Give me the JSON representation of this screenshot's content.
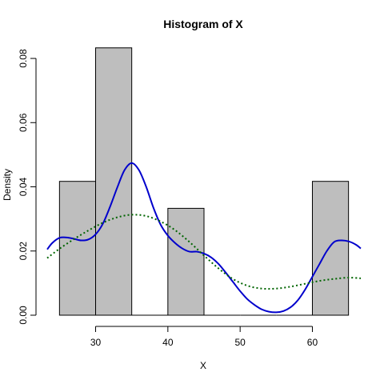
{
  "chart_data": {
    "type": "bar",
    "title": "Histogram of X",
    "xlabel": "X",
    "ylabel": "Density",
    "xlim": [
      23.3,
      66.7
    ],
    "ylim": [
      0,
      0.0835
    ],
    "grid": false,
    "bar_color": "#bebebe",
    "x_ticks": [
      30,
      40,
      50,
      60
    ],
    "y_ticks": [
      0.0,
      0.02,
      0.04,
      0.06,
      0.08
    ],
    "y_tick_labels": [
      "0.00",
      "0.02",
      "0.04",
      "0.06",
      "0.08"
    ],
    "bins": [
      {
        "x0": 25,
        "x1": 30,
        "density": 0.0417
      },
      {
        "x0": 30,
        "x1": 35,
        "density": 0.0833
      },
      {
        "x0": 35,
        "x1": 40,
        "density": 0.0
      },
      {
        "x0": 40,
        "x1": 45,
        "density": 0.0333
      },
      {
        "x0": 45,
        "x1": 50,
        "density": 0.0
      },
      {
        "x0": 50,
        "x1": 55,
        "density": 0.0
      },
      {
        "x0": 55,
        "x1": 60,
        "density": 0.0
      },
      {
        "x0": 60,
        "x1": 65,
        "density": 0.0417
      }
    ],
    "series": [
      {
        "color": "#0000cc",
        "style": "solid",
        "type": "line",
        "x": [
          23.3,
          24,
          25,
          26,
          27,
          28,
          29,
          30,
          31,
          32,
          33,
          34,
          35,
          36,
          37,
          38,
          39,
          40,
          41,
          42,
          43,
          44,
          45,
          46,
          47,
          48,
          49,
          50,
          51,
          52,
          53,
          54,
          55,
          56,
          57,
          58,
          59,
          60,
          61,
          62,
          63,
          64,
          65,
          66,
          66.7
        ],
        "y": [
          0.0205,
          0.0225,
          0.0241,
          0.0242,
          0.0238,
          0.0233,
          0.0236,
          0.0252,
          0.0285,
          0.0338,
          0.0398,
          0.0452,
          0.0474,
          0.0452,
          0.04,
          0.0335,
          0.0282,
          0.0248,
          0.0225,
          0.0208,
          0.0198,
          0.0198,
          0.0192,
          0.018,
          0.016,
          0.0133,
          0.0104,
          0.0075,
          0.005,
          0.0032,
          0.0018,
          0.0011,
          0.0009,
          0.0013,
          0.0025,
          0.0047,
          0.008,
          0.012,
          0.016,
          0.02,
          0.0228,
          0.0233,
          0.023,
          0.022,
          0.0208
        ]
      },
      {
        "color": "#006400",
        "style": "dotted",
        "type": "line",
        "x": [
          23.3,
          25,
          27,
          29,
          31,
          33,
          35,
          37,
          39,
          41,
          43,
          45,
          47,
          49,
          51,
          53,
          55,
          57,
          59,
          61,
          63,
          65,
          66.7
        ],
        "y": [
          0.0178,
          0.0207,
          0.0237,
          0.0264,
          0.0288,
          0.0305,
          0.0313,
          0.0309,
          0.0292,
          0.0265,
          0.0228,
          0.0186,
          0.0146,
          0.0113,
          0.0092,
          0.0083,
          0.0083,
          0.0089,
          0.0098,
          0.0107,
          0.0113,
          0.0117,
          0.0115
        ]
      }
    ]
  }
}
